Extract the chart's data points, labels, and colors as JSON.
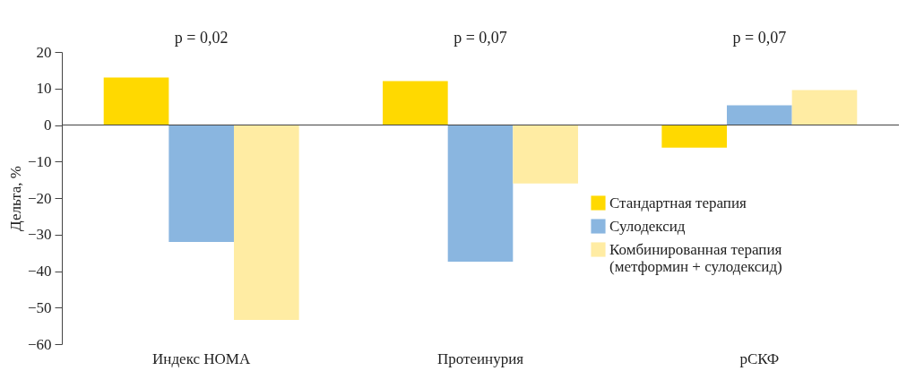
{
  "chart_data": {
    "type": "bar",
    "ylabel": "Дельта, %",
    "categories": [
      "Индекс HOMA",
      "Протеинурия",
      "рСКФ"
    ],
    "series": [
      {
        "name": "Стандартная терапия",
        "color": "#ffd900",
        "values": [
          13,
          12,
          -6.2
        ]
      },
      {
        "name": "Сулодексид",
        "color": "#8ab6e0",
        "values": [
          -32,
          -37.4,
          5.4
        ]
      },
      {
        "name": "Комбинированная терапия (метформин + сулодексид)",
        "color": "#ffeca3",
        "values": [
          -53.4,
          -16,
          9.6
        ]
      }
    ],
    "ylim": [
      -60,
      20
    ],
    "yticks": [
      -60,
      -50,
      -40,
      -30,
      -20,
      -10,
      0,
      10,
      20
    ],
    "annotations": [
      "p = 0,02",
      "p = 0,07",
      "p = 0,07"
    ],
    "ref_lines": [
      {
        "axis": "y",
        "value": 0,
        "color": "#444444"
      }
    ],
    "legend": "right"
  }
}
